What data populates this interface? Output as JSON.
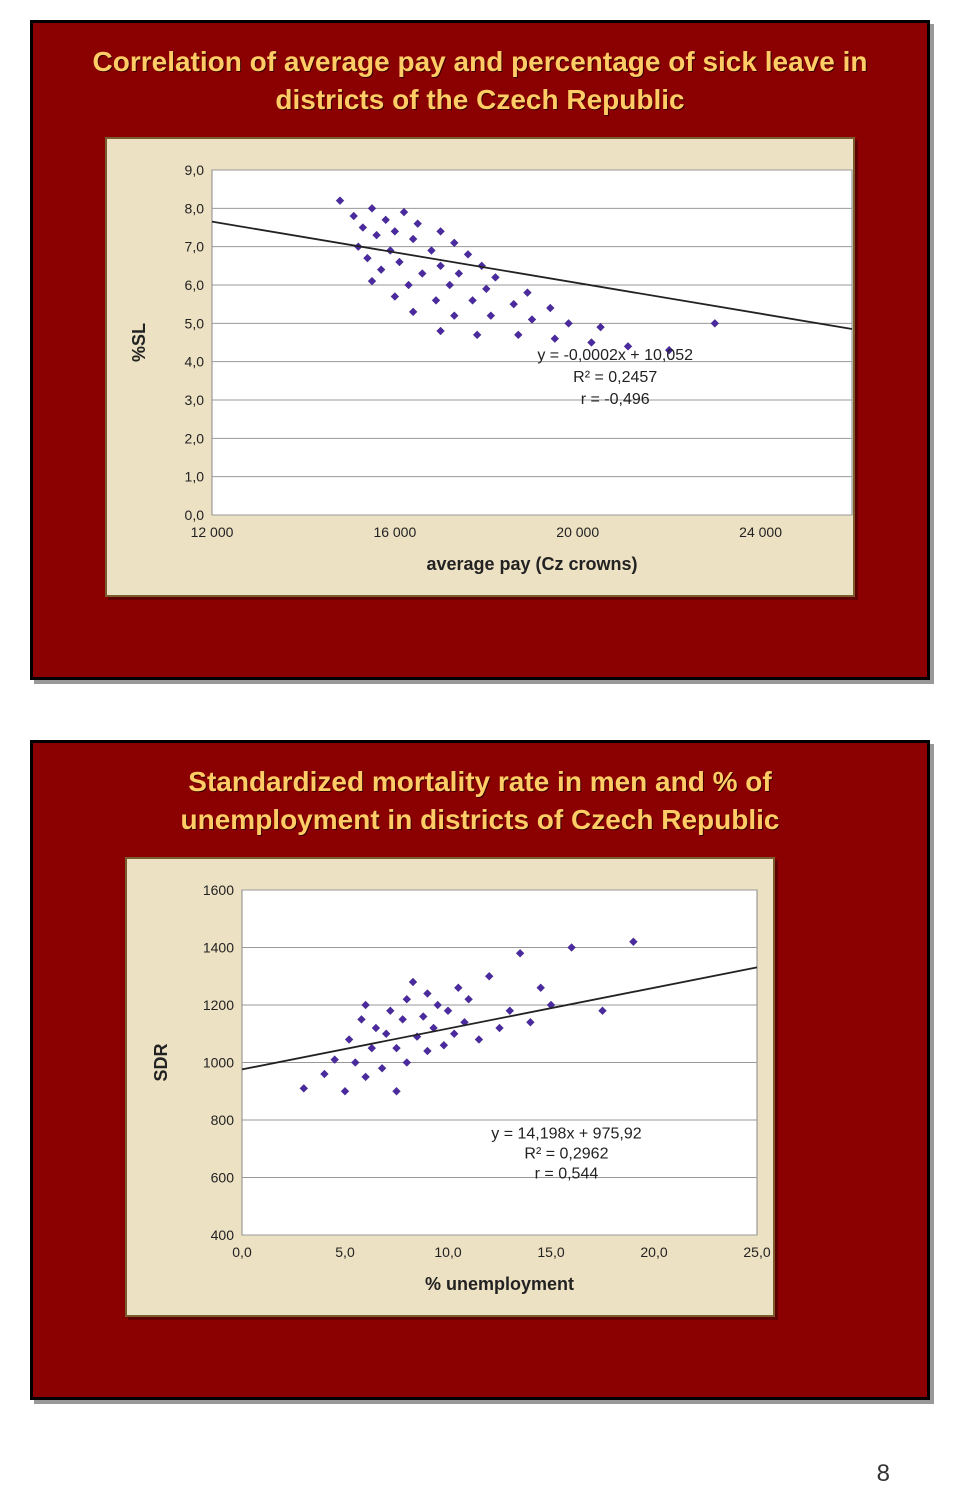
{
  "slide1": {
    "title": "Correlation of average pay and percentage of sick leave in districts of the Czech Republic",
    "chart": {
      "type": "scatter",
      "ylabel": "%SL",
      "xlabel": "average pay (Cz crowns)",
      "xlim": [
        12000,
        26000
      ],
      "xtick_step": 4000,
      "xtick_labels": [
        "12 000",
        "16 000",
        "20 000",
        "24 000"
      ],
      "ylim": [
        0,
        9
      ],
      "ytick_step": 1,
      "ytick_labels": [
        "0,0",
        "1,0",
        "2,0",
        "3,0",
        "4,0",
        "5,0",
        "6,0",
        "7,0",
        "8,0",
        "9,0"
      ],
      "marker_color": "#4b2aa0",
      "grid_color": "#999999",
      "background_color": "#ffffff",
      "trend": {
        "slope": -0.0002,
        "intercept": 10.052
      },
      "anno_lines": [
        "y = -0,0002x + 10,052",
        "R² = 0,2457",
        "r = -0,496"
      ],
      "title_fontsize": 28,
      "label_fontsize": 18,
      "tick_fontsize": 14,
      "points": [
        [
          14800,
          8.2
        ],
        [
          15500,
          8.0
        ],
        [
          16200,
          7.9
        ],
        [
          15100,
          7.8
        ],
        [
          15800,
          7.7
        ],
        [
          16500,
          7.6
        ],
        [
          15300,
          7.5
        ],
        [
          16000,
          7.4
        ],
        [
          17000,
          7.4
        ],
        [
          15600,
          7.3
        ],
        [
          16400,
          7.2
        ],
        [
          17300,
          7.1
        ],
        [
          15200,
          7.0
        ],
        [
          15900,
          6.9
        ],
        [
          16800,
          6.9
        ],
        [
          17600,
          6.8
        ],
        [
          15400,
          6.7
        ],
        [
          16100,
          6.6
        ],
        [
          17000,
          6.5
        ],
        [
          17900,
          6.5
        ],
        [
          15700,
          6.4
        ],
        [
          16600,
          6.3
        ],
        [
          17400,
          6.3
        ],
        [
          18200,
          6.2
        ],
        [
          15500,
          6.1
        ],
        [
          16300,
          6.0
        ],
        [
          17200,
          6.0
        ],
        [
          18000,
          5.9
        ],
        [
          18900,
          5.8
        ],
        [
          16000,
          5.7
        ],
        [
          16900,
          5.6
        ],
        [
          17700,
          5.6
        ],
        [
          18600,
          5.5
        ],
        [
          19400,
          5.4
        ],
        [
          16400,
          5.3
        ],
        [
          17300,
          5.2
        ],
        [
          18100,
          5.2
        ],
        [
          19000,
          5.1
        ],
        [
          19800,
          5.0
        ],
        [
          20500,
          4.9
        ],
        [
          17000,
          4.8
        ],
        [
          17800,
          4.7
        ],
        [
          18700,
          4.7
        ],
        [
          19500,
          4.6
        ],
        [
          20300,
          4.5
        ],
        [
          21100,
          4.4
        ],
        [
          22000,
          4.3
        ],
        [
          23000,
          5.0
        ]
      ]
    }
  },
  "slide2": {
    "title": "Standardized mortality rate in men and % of unemployment in districts of Czech Republic",
    "chart": {
      "type": "scatter",
      "ylabel": "SDR",
      "xlabel": "% unemployment",
      "xlim": [
        0,
        25
      ],
      "xtick_step": 5,
      "xtick_labels": [
        "0,0",
        "5,0",
        "10,0",
        "15,0",
        "20,0",
        "25,0"
      ],
      "ylim": [
        400,
        1600
      ],
      "ytick_step": 200,
      "ytick_labels": [
        "400",
        "600",
        "800",
        "1000",
        "1200",
        "1400",
        "1600"
      ],
      "marker_color": "#4b2aa0",
      "grid_color": "#999999",
      "background_color": "#ffffff",
      "trend": {
        "slope": 14.198,
        "intercept": 975.92
      },
      "anno_lines": [
        "y = 14,198x + 975,92",
        "R² = 0,2962",
        "r = 0,544"
      ],
      "title_fontsize": 28,
      "label_fontsize": 18,
      "tick_fontsize": 14,
      "points": [
        [
          3.0,
          910
        ],
        [
          4.0,
          960
        ],
        [
          4.5,
          1010
        ],
        [
          5.0,
          900
        ],
        [
          5.2,
          1080
        ],
        [
          5.5,
          1000
        ],
        [
          5.8,
          1150
        ],
        [
          6.0,
          950
        ],
        [
          6.0,
          1200
        ],
        [
          6.3,
          1050
        ],
        [
          6.5,
          1120
        ],
        [
          6.8,
          980
        ],
        [
          7.0,
          1100
        ],
        [
          7.2,
          1180
        ],
        [
          7.5,
          900
        ],
        [
          7.5,
          1050
        ],
        [
          7.8,
          1150
        ],
        [
          8.0,
          1220
        ],
        [
          8.0,
          1000
        ],
        [
          8.3,
          1280
        ],
        [
          8.5,
          1090
        ],
        [
          8.8,
          1160
        ],
        [
          9.0,
          1040
        ],
        [
          9.0,
          1240
        ],
        [
          9.3,
          1120
        ],
        [
          9.5,
          1200
        ],
        [
          9.8,
          1060
        ],
        [
          10.0,
          1180
        ],
        [
          10.3,
          1100
        ],
        [
          10.5,
          1260
        ],
        [
          10.8,
          1140
        ],
        [
          11.0,
          1220
        ],
        [
          11.5,
          1080
        ],
        [
          12.0,
          1300
        ],
        [
          12.5,
          1120
        ],
        [
          13.0,
          1180
        ],
        [
          13.5,
          1380
        ],
        [
          14.0,
          1140
        ],
        [
          14.5,
          1260
        ],
        [
          15.0,
          1200
        ],
        [
          16.0,
          1400
        ],
        [
          17.5,
          1180
        ],
        [
          19.0,
          1420
        ]
      ]
    }
  },
  "pageNumber": "8"
}
